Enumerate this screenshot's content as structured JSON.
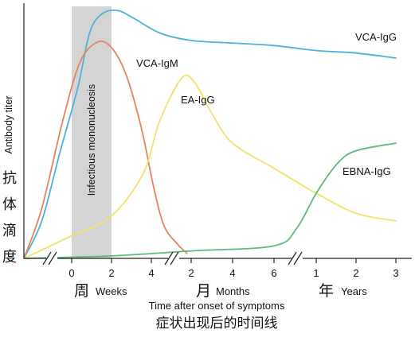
{
  "chart_data": {
    "type": "line",
    "xlabel": "Time after onset of symptoms",
    "xlabel_zh": "症状出现后的时间线",
    "ylabel": "Antibody titer",
    "ylabel_zh": [
      "抗",
      "体",
      "滴",
      "度"
    ],
    "y_unit": "relative titer (no scale printed)",
    "x_unit": "weeks after onset",
    "ylim": [
      0,
      100
    ],
    "shaded_band": {
      "label": "Infectious mononucleosis",
      "x_range": [
        0,
        2
      ]
    },
    "axis_segments": [
      {
        "unit_zh": "周",
        "unit": "Weeks",
        "ticks": [
          {
            "label": "0",
            "x": 0
          },
          {
            "label": "2",
            "x": 2
          },
          {
            "label": "4",
            "x": 4
          }
        ]
      },
      {
        "unit_zh": "月",
        "unit": "Months",
        "ticks": [
          {
            "label": "2",
            "x": 8.7
          },
          {
            "label": "4",
            "x": 17.4
          },
          {
            "label": "6",
            "x": 26.1
          }
        ]
      },
      {
        "unit_zh": "年",
        "unit": "Years",
        "ticks": [
          {
            "label": "1",
            "x": 52
          },
          {
            "label": "2",
            "x": 104
          },
          {
            "label": "3",
            "x": 156
          }
        ]
      }
    ],
    "series": [
      {
        "name": "VCA-IgG",
        "color": "#4ab3da",
        "points": [
          [
            -1.6,
            0
          ],
          [
            -1,
            15
          ],
          [
            -0.4,
            42
          ],
          [
            0.3,
            68
          ],
          [
            0.9,
            90
          ],
          [
            1.5,
            97.5
          ],
          [
            2.3,
            99
          ],
          [
            3.2,
            95.5
          ],
          [
            5,
            90
          ],
          [
            8.7,
            87
          ],
          [
            17.4,
            86
          ],
          [
            26.1,
            85
          ],
          [
            52,
            83
          ],
          [
            104,
            82
          ],
          [
            156,
            80
          ]
        ]
      },
      {
        "name": "VCA-IgM",
        "color": "#e6825f",
        "points": [
          [
            -1.6,
            0
          ],
          [
            -1,
            20
          ],
          [
            -0.3,
            55
          ],
          [
            0.4,
            78
          ],
          [
            1.2,
            86
          ],
          [
            1.9,
            85
          ],
          [
            2.7,
            74
          ],
          [
            3.5,
            52
          ],
          [
            4.3,
            28
          ],
          [
            5.5,
            13
          ],
          [
            7,
            6
          ],
          [
            8.2,
            2
          ]
        ]
      },
      {
        "name": "EA-IgG",
        "color": "#f3e26a",
        "points": [
          [
            -1.6,
            0
          ],
          [
            0,
            9
          ],
          [
            2,
            17
          ],
          [
            3.6,
            34
          ],
          [
            5,
            55
          ],
          [
            7.6,
            72
          ],
          [
            9.5,
            70
          ],
          [
            13,
            58
          ],
          [
            17.4,
            46
          ],
          [
            26.1,
            36
          ],
          [
            52,
            26
          ],
          [
            104,
            18
          ],
          [
            156,
            15
          ]
        ]
      },
      {
        "name": "EBNA-IgG",
        "color": "#5fba7d",
        "points": [
          [
            -1.6,
            0
          ],
          [
            2,
            1
          ],
          [
            8.7,
            3
          ],
          [
            26.1,
            5
          ],
          [
            40,
            12
          ],
          [
            52,
            26
          ],
          [
            80,
            38
          ],
          [
            104,
            43
          ],
          [
            156,
            46
          ]
        ]
      }
    ],
    "legend": "labels placed beside each curve",
    "grid": false
  }
}
